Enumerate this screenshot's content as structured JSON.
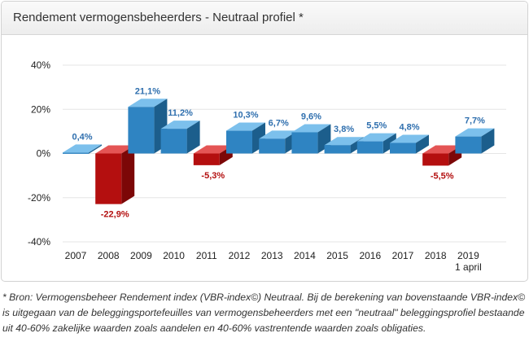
{
  "title": "Rendement vermogensbeheerders - Neutraal profiel *",
  "footnote": "* Bron: Vermogensbeheer Rendement index (VBR-index©) Neutraal. Bij de berekening van bovenstaande VBR-index© is uitgegaan van de beleggingsportefeuilles van vermogensbeheerders met een \"neutraal\" beleggingsprofiel bestaande uit 40-60% zakelijke waarden zoals aandelen en 40-60% vastrentende waarden zoals obligaties.",
  "colors": {
    "positive_front": "#2f84c2",
    "positive_top": "#7cc0ec",
    "positive_side": "#1c5e8c",
    "negative_front": "#b40f0f",
    "negative_top": "#e45555",
    "negative_side": "#7c0707",
    "positive_label": "#2f6fae",
    "negative_label": "#b30f0f",
    "grid": "#e6e6e6",
    "tick_text": "#222222"
  },
  "chart_data": {
    "type": "bar",
    "title": "Rendement vermogensbeheerders - Neutraal profiel *",
    "categories": [
      "2007",
      "2008",
      "2009",
      "2010",
      "2011",
      "2012",
      "2013",
      "2014",
      "2015",
      "2016",
      "2017",
      "2018",
      "2019"
    ],
    "category_sublabels": [
      "",
      "",
      "",
      "",
      "",
      "",
      "",
      "",
      "",
      "",
      "",
      "",
      "1 april"
    ],
    "values": [
      0.4,
      -22.9,
      21.1,
      11.2,
      -5.3,
      10.3,
      6.7,
      9.6,
      3.8,
      5.5,
      4.8,
      -5.5,
      7.7
    ],
    "data_labels": [
      "0,4%",
      "-22,9%",
      "21,1%",
      "11,2%",
      "-5,3%",
      "10,3%",
      "6,7%",
      "9,6%",
      "3,8%",
      "5,5%",
      "4,8%",
      "-5,5%",
      "7,7%"
    ],
    "y_ticks": [
      40,
      20,
      0,
      -20,
      -40
    ],
    "y_tick_labels": [
      "40%",
      "20%",
      "0%",
      "-20%",
      "-40%"
    ],
    "ylim": [
      -40,
      40
    ],
    "grid": true,
    "legend": "none",
    "style": "3d"
  }
}
